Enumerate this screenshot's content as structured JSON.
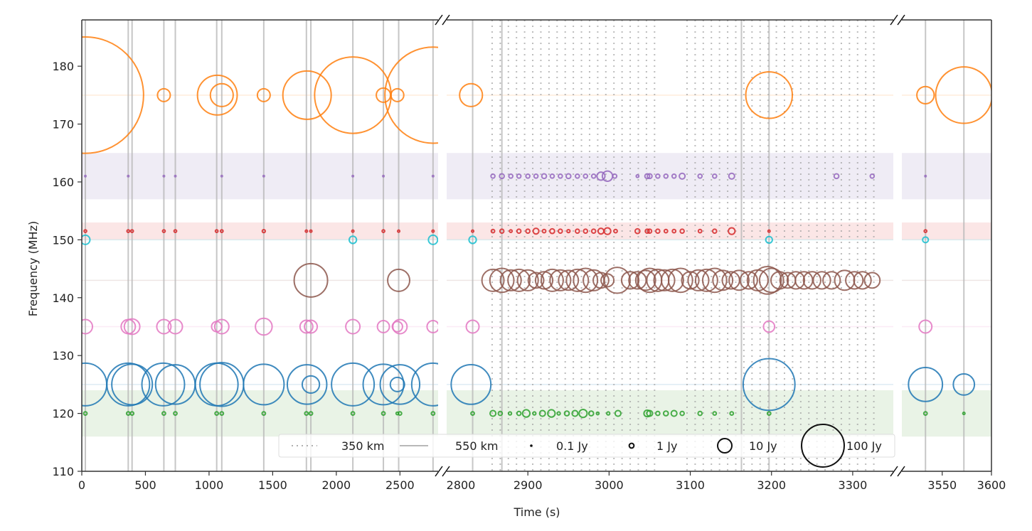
{
  "chart_data": {
    "type": "scatter",
    "title": "",
    "xlabel": "Time (s)",
    "ylabel": "Frequency (MHz)",
    "ylim": [
      110,
      188
    ],
    "yticks": [
      110,
      120,
      130,
      140,
      150,
      160,
      170,
      180
    ],
    "broken_x_axis": true,
    "panels": [
      {
        "name": "left",
        "xlim": [
          0,
          2800
        ],
        "xticks": [
          0,
          500,
          1000,
          1500,
          2000,
          2500,
          2800
        ]
      },
      {
        "name": "middle",
        "xlim": [
          2800,
          3350
        ],
        "xticks": [
          2900,
          3000,
          3100,
          3200,
          3300
        ]
      },
      {
        "name": "right",
        "xlim": [
          3509,
          3600
        ],
        "xticks": [
          3550,
          3600
        ]
      }
    ],
    "frequency_bands": [
      {
        "name": "purple-band",
        "range": [
          157,
          165
        ],
        "color": "#efecf5"
      },
      {
        "name": "red-band",
        "range": [
          150,
          153
        ],
        "color": "#fbe6e6"
      },
      {
        "name": "green-band",
        "range": [
          116,
          124
        ],
        "color": "#e9f3e6"
      }
    ],
    "reference_lines": [
      {
        "freq": 175,
        "color": "#ff7f0e"
      },
      {
        "freq": 143,
        "color": "#8c564b"
      },
      {
        "freq": 135,
        "color": "#e377c2"
      },
      {
        "freq": 125,
        "color": "#1f77b4"
      },
      {
        "freq": 150,
        "color": "#17becf"
      }
    ],
    "orbit_lines": {
      "550_km": [
        28,
        365,
        395,
        645,
        735,
        1060,
        1100,
        1430,
        1765,
        1800,
        2130,
        2370,
        2490,
        2760,
        2832,
        2868,
        3163,
        3197,
        3533,
        3572
      ],
      "350_km_range": [
        2856,
        3334
      ],
      "350_km_step": 10,
      "350_km_gap": [
        3060,
        3092
      ]
    },
    "series": [
      {
        "name": "175 MHz",
        "color": "#ff7f0e",
        "freq": 175,
        "points": [
          [
            28,
            820
          ],
          [
            645,
            8
          ],
          [
            1065,
            86
          ],
          [
            1100,
            27
          ],
          [
            1430,
            8
          ],
          [
            1770,
            130
          ],
          [
            2130,
            340
          ],
          [
            2370,
            10
          ],
          [
            2480,
            8
          ],
          [
            2760,
            550
          ],
          [
            2830,
            27
          ],
          [
            3197,
            120
          ],
          [
            3533,
            15
          ],
          [
            3572,
            180
          ]
        ]
      },
      {
        "name": "161 MHz",
        "color": "#9467bd",
        "freq": 161,
        "points": [
          [
            28,
            0.1
          ],
          [
            365,
            0.1
          ],
          [
            645,
            0.1
          ],
          [
            735,
            0.1
          ],
          [
            1100,
            0.1
          ],
          [
            1430,
            0.1
          ],
          [
            2130,
            0.1
          ],
          [
            2370,
            0.1
          ],
          [
            2760,
            0.1
          ],
          [
            2857,
            0.7
          ],
          [
            2868,
            1
          ],
          [
            2879,
            0.7
          ],
          [
            2889,
            0.7
          ],
          [
            2900,
            0.7
          ],
          [
            2910,
            0.7
          ],
          [
            2920,
            1
          ],
          [
            2930,
            0.7
          ],
          [
            2940,
            0.7
          ],
          [
            2950,
            1
          ],
          [
            2961,
            0.7
          ],
          [
            2971,
            0.7
          ],
          [
            2981,
            0.7
          ],
          [
            2990,
            3
          ],
          [
            2998,
            5
          ],
          [
            3007,
            0.7
          ],
          [
            3035,
            0.3
          ],
          [
            3047,
            1
          ],
          [
            3050,
            1
          ],
          [
            3060,
            0.7
          ],
          [
            3070,
            0.7
          ],
          [
            3080,
            0.7
          ],
          [
            3090,
            1.5
          ],
          [
            3112,
            0.7
          ],
          [
            3130,
            0.7
          ],
          [
            3151,
            1.5
          ],
          [
            3280,
            1
          ],
          [
            3324,
            0.7
          ],
          [
            3533,
            0.1
          ]
        ]
      },
      {
        "name": "151.5 MHz",
        "color": "#d62728",
        "freq": 151.5,
        "points": [
          [
            28,
            0.3
          ],
          [
            365,
            0.3
          ],
          [
            395,
            0.3
          ],
          [
            645,
            0.3
          ],
          [
            735,
            0.3
          ],
          [
            1060,
            0.3
          ],
          [
            1100,
            0.3
          ],
          [
            1430,
            0.4
          ],
          [
            1765,
            0.2
          ],
          [
            1800,
            0.2
          ],
          [
            2130,
            0.2
          ],
          [
            2370,
            0.3
          ],
          [
            2490,
            0.2
          ],
          [
            2760,
            0.2
          ],
          [
            2832,
            0.2
          ],
          [
            2857,
            0.5
          ],
          [
            2868,
            0.7
          ],
          [
            2879,
            0.3
          ],
          [
            2889,
            0.7
          ],
          [
            2900,
            0.7
          ],
          [
            2910,
            1.5
          ],
          [
            2920,
            0.5
          ],
          [
            2930,
            1
          ],
          [
            2940,
            0.7
          ],
          [
            2950,
            0.4
          ],
          [
            2961,
            0.7
          ],
          [
            2971,
            0.7
          ],
          [
            2981,
            0.7
          ],
          [
            2990,
            1.5
          ],
          [
            2998,
            2
          ],
          [
            3008,
            0.5
          ],
          [
            3035,
            1
          ],
          [
            3047,
            0.7
          ],
          [
            3050,
            0.7
          ],
          [
            3060,
            0.7
          ],
          [
            3070,
            0.5
          ],
          [
            3080,
            0.5
          ],
          [
            3090,
            0.7
          ],
          [
            3112,
            0.5
          ],
          [
            3130,
            0.7
          ],
          [
            3151,
            2
          ],
          [
            3197,
            0.2
          ],
          [
            3533,
            0.3
          ]
        ]
      },
      {
        "name": "150 MHz",
        "color": "#17becf",
        "freq": 150,
        "points": [
          [
            28,
            4
          ],
          [
            2130,
            2.5
          ],
          [
            2760,
            4
          ],
          [
            2832,
            2.5
          ],
          [
            3197,
            2
          ],
          [
            3533,
            1.5
          ]
        ]
      },
      {
        "name": "143 MHz",
        "color": "#8c564b",
        "freq": 143,
        "points": [
          [
            1800,
            60
          ],
          [
            2490,
            25
          ],
          [
            2857,
            25
          ],
          [
            2868,
            30
          ],
          [
            2879,
            22
          ],
          [
            2889,
            25
          ],
          [
            2900,
            22
          ],
          [
            2910,
            12
          ],
          [
            2920,
            15
          ],
          [
            2930,
            25
          ],
          [
            2940,
            22
          ],
          [
            2950,
            20
          ],
          [
            2961,
            25
          ],
          [
            2971,
            30
          ],
          [
            2981,
            22
          ],
          [
            2990,
            12
          ],
          [
            2998,
            8
          ],
          [
            3010,
            35
          ],
          [
            3026,
            15
          ],
          [
            3035,
            15
          ],
          [
            3045,
            20
          ],
          [
            3050,
            30
          ],
          [
            3060,
            25
          ],
          [
            3068,
            22
          ],
          [
            3078,
            25
          ],
          [
            3088,
            30
          ],
          [
            3100,
            15
          ],
          [
            3110,
            22
          ],
          [
            3120,
            25
          ],
          [
            3130,
            30
          ],
          [
            3140,
            20
          ],
          [
            3150,
            15
          ],
          [
            3160,
            20
          ],
          [
            3172,
            15
          ],
          [
            3183,
            22
          ],
          [
            3195,
            40
          ],
          [
            3200,
            30
          ],
          [
            3210,
            15
          ],
          [
            3220,
            12
          ],
          [
            3230,
            15
          ],
          [
            3240,
            15
          ],
          [
            3250,
            15
          ],
          [
            3262,
            15
          ],
          [
            3274,
            15
          ],
          [
            3290,
            20
          ],
          [
            3302,
            15
          ],
          [
            3312,
            15
          ],
          [
            3324,
            12
          ]
        ]
      },
      {
        "name": "135 MHz",
        "color": "#e377c2",
        "freq": 135,
        "points": [
          [
            28,
            10
          ],
          [
            365,
            10
          ],
          [
            395,
            12
          ],
          [
            645,
            10
          ],
          [
            735,
            10
          ],
          [
            1060,
            5
          ],
          [
            1100,
            10
          ],
          [
            1430,
            14
          ],
          [
            1765,
            8
          ],
          [
            1800,
            8
          ],
          [
            2130,
            10
          ],
          [
            2370,
            7
          ],
          [
            2480,
            5
          ],
          [
            2500,
            10
          ],
          [
            2760,
            7
          ],
          [
            2832,
            8
          ],
          [
            3197,
            6
          ],
          [
            3533,
            8
          ]
        ]
      },
      {
        "name": "125 MHz",
        "color": "#1f77b4",
        "freq": 125,
        "points": [
          [
            28,
            100
          ],
          [
            365,
            100
          ],
          [
            395,
            90
          ],
          [
            640,
            100
          ],
          [
            735,
            85
          ],
          [
            1060,
            100
          ],
          [
            1100,
            105
          ],
          [
            1430,
            90
          ],
          [
            1770,
            85
          ],
          [
            1800,
            15
          ],
          [
            2130,
            100
          ],
          [
            2370,
            90
          ],
          [
            2480,
            10
          ],
          [
            2500,
            85
          ],
          [
            2760,
            100
          ],
          [
            2830,
            86
          ],
          [
            3197,
            150
          ],
          [
            3533,
            62
          ],
          [
            3572,
            23
          ]
        ]
      },
      {
        "name": "120 MHz",
        "color": "#2ca02c",
        "freq": 120,
        "points": [
          [
            28,
            0.5
          ],
          [
            365,
            0.5
          ],
          [
            395,
            0.5
          ],
          [
            645,
            0.5
          ],
          [
            735,
            0.5
          ],
          [
            1060,
            0.5
          ],
          [
            1100,
            0.5
          ],
          [
            1430,
            0.5
          ],
          [
            1765,
            0.5
          ],
          [
            1800,
            0.5
          ],
          [
            2130,
            0.5
          ],
          [
            2370,
            0.5
          ],
          [
            2480,
            0.3
          ],
          [
            2500,
            0.5
          ],
          [
            2760,
            0.5
          ],
          [
            2832,
            0.5
          ],
          [
            2857,
            1.5
          ],
          [
            2866,
            0.7
          ],
          [
            2878,
            0.4
          ],
          [
            2889,
            0.7
          ],
          [
            2898,
            2.5
          ],
          [
            2908,
            0.4
          ],
          [
            2918,
            1.5
          ],
          [
            2929,
            2.5
          ],
          [
            2938,
            0.4
          ],
          [
            2948,
            1
          ],
          [
            2958,
            1.5
          ],
          [
            2968,
            3
          ],
          [
            2978,
            1
          ],
          [
            2986,
            0.3
          ],
          [
            2999,
            0.4
          ],
          [
            3011,
            1.5
          ],
          [
            3047,
            2
          ],
          [
            3050,
            1.5
          ],
          [
            3060,
            0.7
          ],
          [
            3070,
            1
          ],
          [
            3080,
            1.5
          ],
          [
            3090,
            0.7
          ],
          [
            3112,
            0.7
          ],
          [
            3130,
            0.5
          ],
          [
            3151,
            0.5
          ],
          [
            3197,
            0.5
          ],
          [
            3533,
            0.5
          ],
          [
            3572,
            0.2
          ]
        ]
      }
    ],
    "legend": {
      "placement": "lower-center",
      "entries": [
        {
          "label": "350 km",
          "kind": "dotted-line"
        },
        {
          "label": "550 km",
          "kind": "solid-line"
        },
        {
          "label": "0.1 Jy",
          "kind": "circle",
          "flux": 0.1
        },
        {
          "label": "1 Jy",
          "kind": "circle",
          "flux": 1
        },
        {
          "label": "10 Jy",
          "kind": "circle",
          "flux": 10
        },
        {
          "label": "100 Jy",
          "kind": "circle",
          "flux": 100
        }
      ]
    }
  }
}
